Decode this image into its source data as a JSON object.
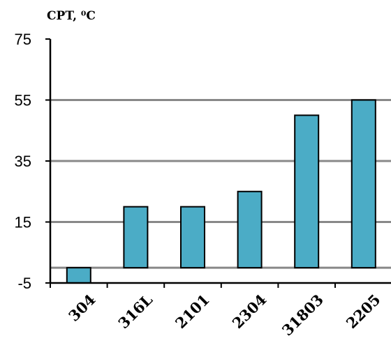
{
  "chart_data": {
    "type": "bar",
    "title": "",
    "ylabel": "CPT, ⁰C",
    "xlabel": "",
    "categories": [
      "304",
      "316L",
      "2101",
      "2304",
      "31803",
      "2205"
    ],
    "series": [
      {
        "values": [
          -5,
          20,
          20,
          25,
          50,
          55
        ]
      }
    ],
    "ylim": [
      -5,
      75
    ],
    "yticks": [
      "75",
      "55",
      "35",
      "15",
      "-5"
    ],
    "ytick_values": [
      75,
      55,
      35,
      15,
      -5
    ],
    "gridlines": [
      55,
      35,
      15,
      0
    ],
    "grid": true,
    "legend": "none",
    "colors": {
      "bar": "#4bacc6",
      "bar_stroke": "#000000",
      "grid": "#888888",
      "axis": "#000000"
    }
  }
}
